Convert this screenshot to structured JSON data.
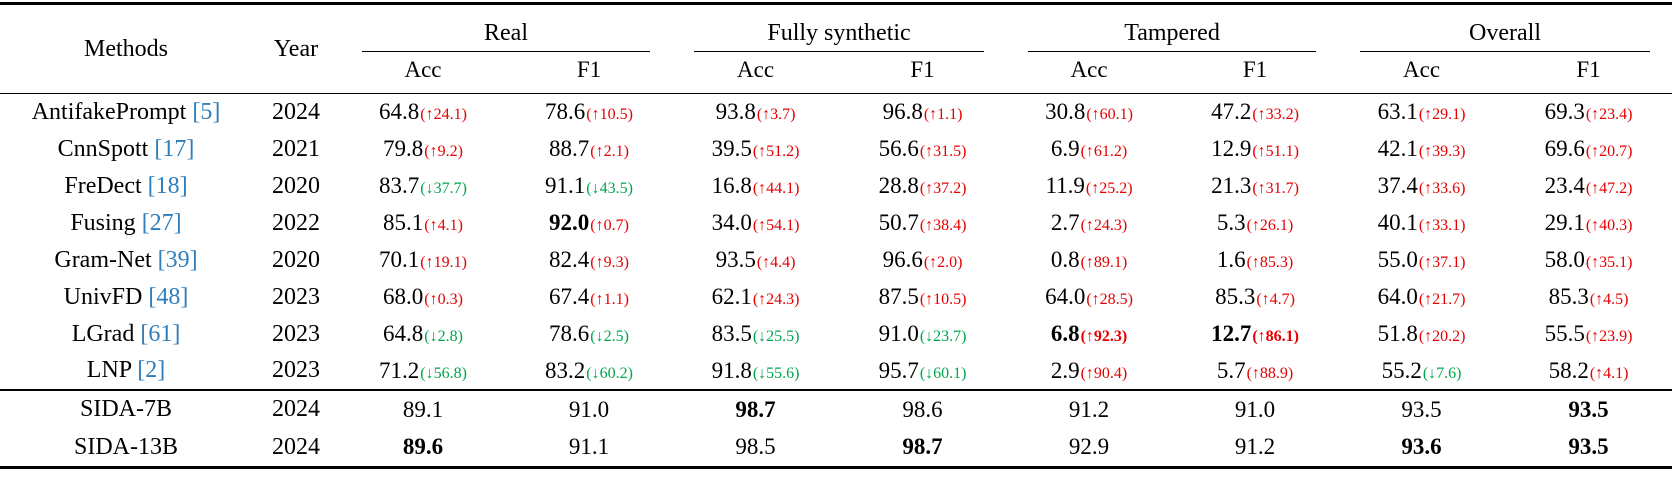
{
  "colors": {
    "up": "#e60000",
    "down": "#00a64f",
    "cite": "#2e7ebb"
  },
  "table": {
    "headers": {
      "methods": "Methods",
      "year": "Year",
      "groups": [
        {
          "label": "Real"
        },
        {
          "label": "Fully synthetic"
        },
        {
          "label": "Tampered"
        },
        {
          "label": "Overall"
        }
      ],
      "sub": [
        "Acc",
        "F1"
      ]
    },
    "rows": [
      {
        "method": "AntifakePrompt",
        "cite": "[5]",
        "year": "2024",
        "section": "baseline",
        "cells": [
          {
            "v": "64.8",
            "d": "24.1",
            "dir": "up"
          },
          {
            "v": "78.6",
            "d": "10.5",
            "dir": "up"
          },
          {
            "v": "93.8",
            "d": "3.7",
            "dir": "up"
          },
          {
            "v": "96.8",
            "d": "1.1",
            "dir": "up"
          },
          {
            "v": "30.8",
            "d": "60.1",
            "dir": "up"
          },
          {
            "v": "47.2",
            "d": "33.2",
            "dir": "up"
          },
          {
            "v": "63.1",
            "d": "29.1",
            "dir": "up"
          },
          {
            "v": "69.3",
            "d": "23.4",
            "dir": "up"
          }
        ]
      },
      {
        "method": "CnnSpott",
        "cite": "[17]",
        "year": "2021",
        "section": "baseline",
        "cells": [
          {
            "v": "79.8",
            "d": "9.2",
            "dir": "up"
          },
          {
            "v": "88.7",
            "d": "2.1",
            "dir": "up"
          },
          {
            "v": "39.5",
            "d": "51.2",
            "dir": "up"
          },
          {
            "v": "56.6",
            "d": "31.5",
            "dir": "up"
          },
          {
            "v": "6.9",
            "d": "61.2",
            "dir": "up"
          },
          {
            "v": "12.9",
            "d": "51.1",
            "dir": "up"
          },
          {
            "v": "42.1",
            "d": "39.3",
            "dir": "up"
          },
          {
            "v": "69.6",
            "d": "20.7",
            "dir": "up"
          }
        ]
      },
      {
        "method": "FreDect",
        "cite": "[18]",
        "year": "2020",
        "section": "baseline",
        "cells": [
          {
            "v": "83.7",
            "d": "37.7",
            "dir": "down"
          },
          {
            "v": "91.1",
            "d": "43.5",
            "dir": "down"
          },
          {
            "v": "16.8",
            "d": "44.1",
            "dir": "up"
          },
          {
            "v": "28.8",
            "d": "37.2",
            "dir": "up"
          },
          {
            "v": "11.9",
            "d": "25.2",
            "dir": "up"
          },
          {
            "v": "21.3",
            "d": "31.7",
            "dir": "up"
          },
          {
            "v": "37.4",
            "d": "33.6",
            "dir": "up"
          },
          {
            "v": "23.4",
            "d": "47.2",
            "dir": "up"
          }
        ]
      },
      {
        "method": "Fusing",
        "cite": "[27]",
        "year": "2022",
        "section": "baseline",
        "cells": [
          {
            "v": "85.1",
            "d": "4.1",
            "dir": "up"
          },
          {
            "v": "92.0",
            "b": true,
            "d": "0.7",
            "dir": "up"
          },
          {
            "v": "34.0",
            "d": "54.1",
            "dir": "up"
          },
          {
            "v": "50.7",
            "d": "38.4",
            "dir": "up"
          },
          {
            "v": "2.7",
            "d": "24.3",
            "dir": "up"
          },
          {
            "v": "5.3",
            "d": "26.1",
            "dir": "up"
          },
          {
            "v": "40.1",
            "d": "33.1",
            "dir": "up"
          },
          {
            "v": "29.1",
            "d": "40.3",
            "dir": "up"
          }
        ]
      },
      {
        "method": "Gram-Net",
        "cite": "[39]",
        "year": "2020",
        "section": "baseline",
        "cells": [
          {
            "v": "70.1",
            "d": "19.1",
            "dir": "up"
          },
          {
            "v": "82.4",
            "d": "9.3",
            "dir": "up"
          },
          {
            "v": "93.5",
            "d": "4.4",
            "dir": "up"
          },
          {
            "v": "96.6",
            "d": "2.0",
            "dir": "up"
          },
          {
            "v": "0.8",
            "d": "89.1",
            "dir": "up"
          },
          {
            "v": "1.6",
            "d": "85.3",
            "dir": "up"
          },
          {
            "v": "55.0",
            "d": "37.1",
            "dir": "up"
          },
          {
            "v": "58.0",
            "d": "35.1",
            "dir": "up"
          }
        ]
      },
      {
        "method": "UnivFD",
        "cite": "[48]",
        "year": "2023",
        "section": "baseline",
        "cells": [
          {
            "v": "68.0",
            "d": "0.3",
            "dir": "up"
          },
          {
            "v": "67.4",
            "d": "1.1",
            "dir": "up"
          },
          {
            "v": "62.1",
            "d": "24.3",
            "dir": "up"
          },
          {
            "v": "87.5",
            "d": "10.5",
            "dir": "up"
          },
          {
            "v": "64.0",
            "d": "28.5",
            "dir": "up"
          },
          {
            "v": "85.3",
            "d": "4.7",
            "dir": "up"
          },
          {
            "v": "64.0",
            "d": "21.7",
            "dir": "up"
          },
          {
            "v": "85.3",
            "d": "4.5",
            "dir": "up"
          }
        ]
      },
      {
        "method": "LGrad",
        "cite": "[61]",
        "year": "2023",
        "section": "baseline",
        "cells": [
          {
            "v": "64.8",
            "d": "2.8",
            "dir": "down"
          },
          {
            "v": "78.6",
            "d": "2.5",
            "dir": "down"
          },
          {
            "v": "83.5",
            "d": "25.5",
            "dir": "down"
          },
          {
            "v": "91.0",
            "d": "23.7",
            "dir": "down"
          },
          {
            "v": "6.8",
            "b": true,
            "d": "92.3",
            "dir": "up",
            "db": true
          },
          {
            "v": "12.7",
            "b": true,
            "d": "86.1",
            "dir": "up",
            "db": true
          },
          {
            "v": "51.8",
            "d": "20.2",
            "dir": "up"
          },
          {
            "v": "55.5",
            "d": "23.9",
            "dir": "up"
          }
        ]
      },
      {
        "method": "LNP",
        "cite": "[2]",
        "year": "2023",
        "section": "baseline",
        "cells": [
          {
            "v": "71.2",
            "d": "56.8",
            "dir": "down"
          },
          {
            "v": "83.2",
            "d": "60.2",
            "dir": "down"
          },
          {
            "v": "91.8",
            "d": "55.6",
            "dir": "down"
          },
          {
            "v": "95.7",
            "d": "60.1",
            "dir": "down"
          },
          {
            "v": "2.9",
            "d": "90.4",
            "dir": "up"
          },
          {
            "v": "5.7",
            "d": "88.9",
            "dir": "up"
          },
          {
            "v": "55.2",
            "d": "7.6",
            "dir": "down"
          },
          {
            "v": "58.2",
            "d": "4.1",
            "dir": "up"
          }
        ]
      },
      {
        "method": "SIDA-7B",
        "cite": "",
        "year": "2024",
        "section": "sida",
        "cells": [
          {
            "v": "89.1"
          },
          {
            "v": "91.0"
          },
          {
            "v": "98.7",
            "b": true
          },
          {
            "v": "98.6"
          },
          {
            "v": "91.2"
          },
          {
            "v": "91.0"
          },
          {
            "v": "93.5"
          },
          {
            "v": "93.5",
            "b": true
          }
        ]
      },
      {
        "method": "SIDA-13B",
        "cite": "",
        "year": "2024",
        "section": "sida",
        "cells": [
          {
            "v": "89.6",
            "b": true
          },
          {
            "v": "91.1"
          },
          {
            "v": "98.5"
          },
          {
            "v": "98.7",
            "b": true
          },
          {
            "v": "92.9"
          },
          {
            "v": "91.2"
          },
          {
            "v": "93.6",
            "b": true
          },
          {
            "v": "93.5",
            "b": true
          }
        ]
      }
    ]
  }
}
